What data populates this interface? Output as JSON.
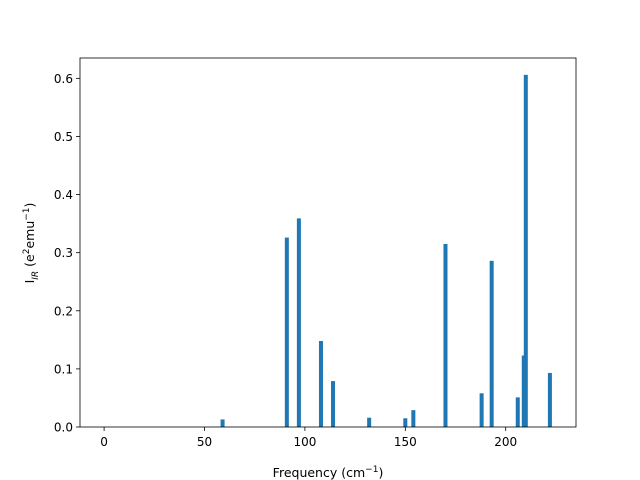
{
  "chart_data": {
    "type": "bar",
    "xlabel_main": "Frequency (cm",
    "xlabel_sup": "−1",
    "xlabel_end": ")",
    "ylabel_main": "I",
    "ylabel_sub": "IR",
    "ylabel_mid": " (e",
    "ylabel_sup1": "2",
    "ylabel_mid2": "emu",
    "ylabel_sup2": "−1",
    "ylabel_end": ")",
    "xlim": [
      -12,
      235
    ],
    "ylim": [
      0,
      0.635
    ],
    "xticks": [
      0,
      50,
      100,
      150,
      200
    ],
    "xtick_labels": [
      "0",
      "50",
      "100",
      "150",
      "200"
    ],
    "yticks": [
      0.0,
      0.1,
      0.2,
      0.3,
      0.4,
      0.5,
      0.6
    ],
    "ytick_labels": [
      "0.0",
      "0.1",
      "0.2",
      "0.3",
      "0.4",
      "0.5",
      "0.6"
    ],
    "bar_width": 2,
    "bar_color": "#1f77b4",
    "x": [
      59,
      91,
      97,
      108,
      114,
      132,
      150,
      154,
      170,
      188,
      193,
      206,
      209,
      210,
      222
    ],
    "values": [
      0.013,
      0.326,
      0.359,
      0.148,
      0.079,
      0.016,
      0.015,
      0.029,
      0.315,
      0.058,
      0.286,
      0.051,
      0.123,
      0.606,
      0.093
    ],
    "grid": false
  }
}
